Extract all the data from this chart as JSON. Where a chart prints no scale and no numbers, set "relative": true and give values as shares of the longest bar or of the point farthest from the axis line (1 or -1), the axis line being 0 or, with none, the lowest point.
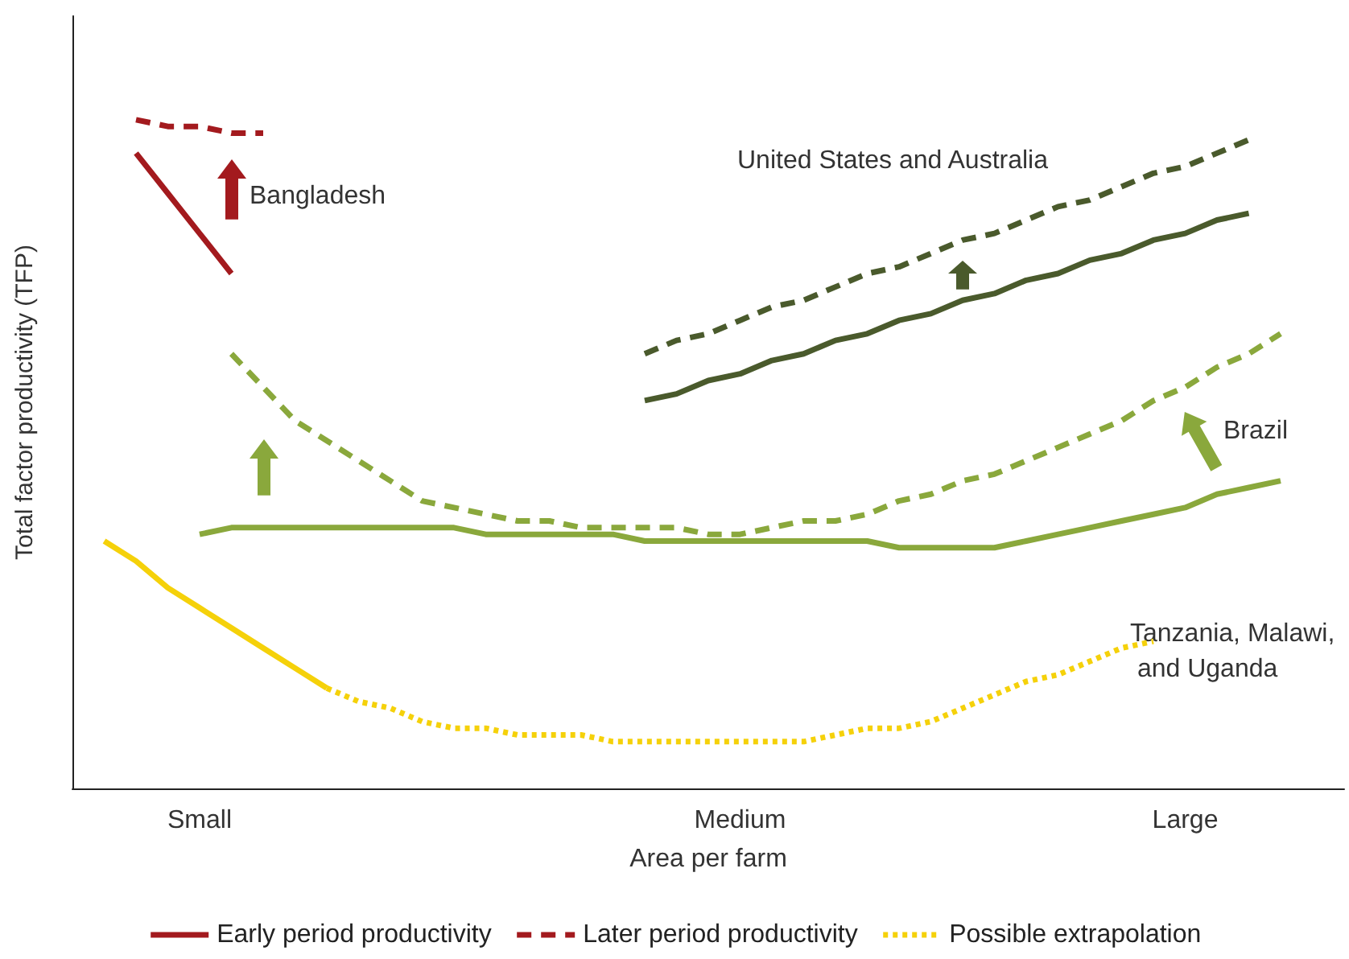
{
  "chart_data": {
    "type": "line",
    "relative": true,
    "xlabel": "Area per farm",
    "ylabel": "Total factor productivity (TFP)",
    "categories": [
      null,
      null,
      null,
      null,
      "Small",
      null,
      null,
      null,
      null,
      null,
      null,
      null,
      null,
      null,
      null,
      null,
      null,
      null,
      null,
      null,
      null,
      "Medium",
      null,
      null,
      null,
      null,
      null,
      null,
      null,
      null,
      null,
      null,
      null,
      null,
      null,
      "Large",
      null,
      null,
      null,
      null,
      null
    ],
    "legend": "bottom",
    "grid": false,
    "marker": "none",
    "series": [
      {
        "name": "Early period productivity",
        "color": "#a31a1e",
        "line_style": "solid",
        "values": [
          null,
          null,
          0.95,
          0.89,
          0.83,
          0.77,
          null,
          null,
          null,
          null,
          null,
          null,
          null,
          null,
          null,
          null,
          null,
          null,
          null,
          null,
          null,
          null,
          null,
          null,
          null,
          null,
          null,
          null,
          null,
          null,
          null,
          null,
          null,
          null,
          null,
          null,
          null,
          null,
          null,
          null,
          null
        ]
      },
      {
        "name": "Later period productivity",
        "color": "#a31a1e",
        "line_style": "dashed",
        "values": [
          null,
          null,
          1.0,
          0.99,
          0.99,
          0.98,
          0.98,
          null,
          null,
          null,
          null,
          null,
          null,
          null,
          null,
          null,
          null,
          null,
          null,
          null,
          null,
          null,
          null,
          null,
          null,
          null,
          null,
          null,
          null,
          null,
          null,
          null,
          null,
          null,
          null,
          null,
          null,
          null,
          null,
          null,
          null
        ]
      },
      {
        "color": "#4a5a2c",
        "line_style": "solid",
        "values": [
          null,
          null,
          null,
          null,
          null,
          null,
          null,
          null,
          null,
          null,
          null,
          null,
          null,
          null,
          null,
          null,
          null,
          null,
          0.58,
          0.59,
          0.61,
          0.62,
          0.64,
          0.65,
          0.67,
          0.68,
          0.7,
          0.71,
          0.73,
          0.74,
          0.76,
          0.77,
          0.79,
          0.8,
          0.82,
          0.83,
          0.85,
          0.86,
          null,
          null,
          null
        ]
      },
      {
        "color": "#4a5a2c",
        "line_style": "dashed",
        "values": [
          null,
          null,
          null,
          null,
          null,
          null,
          null,
          null,
          null,
          null,
          null,
          null,
          null,
          null,
          null,
          null,
          null,
          null,
          0.65,
          0.67,
          0.68,
          0.7,
          0.72,
          0.73,
          0.75,
          0.77,
          0.78,
          0.8,
          0.82,
          0.83,
          0.85,
          0.87,
          0.88,
          0.9,
          0.92,
          0.93,
          0.95,
          0.97,
          null,
          null,
          null
        ]
      },
      {
        "color": "#8aa83c",
        "line_style": "solid",
        "values": [
          null,
          null,
          null,
          null,
          0.38,
          0.39,
          0.39,
          0.39,
          0.39,
          0.39,
          0.39,
          0.39,
          0.39,
          0.38,
          0.38,
          0.38,
          0.38,
          0.38,
          0.37,
          0.37,
          0.37,
          0.37,
          0.37,
          0.37,
          0.37,
          0.37,
          0.36,
          0.36,
          0.36,
          0.36,
          0.37,
          0.38,
          0.39,
          0.4,
          0.41,
          0.42,
          0.44,
          0.45,
          0.46,
          null,
          null
        ]
      },
      {
        "color": "#8aa83c",
        "line_style": "dashed",
        "values": [
          null,
          null,
          null,
          null,
          null,
          0.65,
          0.6,
          0.55,
          0.52,
          0.49,
          0.46,
          0.43,
          0.42,
          0.41,
          0.4,
          0.4,
          0.39,
          0.39,
          0.39,
          0.39,
          0.38,
          0.38,
          0.39,
          0.4,
          0.4,
          0.41,
          0.43,
          0.44,
          0.46,
          0.47,
          0.49,
          0.51,
          0.53,
          0.55,
          0.58,
          0.6,
          0.63,
          0.65,
          0.68,
          null,
          null
        ]
      },
      {
        "color": "#f5d10a",
        "line_style": "solid",
        "values": [
          null,
          0.37,
          0.34,
          0.3,
          0.27,
          0.24,
          0.21,
          0.18,
          0.15,
          null,
          null,
          null,
          null,
          null,
          null,
          null,
          null,
          null,
          null,
          null,
          null,
          null,
          null,
          null,
          null,
          null,
          null,
          null,
          null,
          null,
          null,
          null,
          null,
          null,
          null,
          null,
          null,
          null,
          null,
          null,
          null
        ]
      },
      {
        "name": "Possible extrapolation",
        "color": "#f5d10a",
        "line_style": "dotted",
        "values": [
          null,
          null,
          null,
          null,
          null,
          null,
          null,
          null,
          0.15,
          0.13,
          0.12,
          0.1,
          0.09,
          0.09,
          0.08,
          0.08,
          0.08,
          0.07,
          0.07,
          0.07,
          0.07,
          0.07,
          0.07,
          0.07,
          0.08,
          0.09,
          0.09,
          0.1,
          0.12,
          0.14,
          0.16,
          0.17,
          0.19,
          0.21,
          0.22,
          null,
          null,
          null,
          null,
          null,
          null
        ]
      }
    ],
    "annotations": [
      "Bangladesh",
      "United States and Australia",
      "Brazil",
      "Tanzania, Malawi, and Uganda"
    ]
  }
}
